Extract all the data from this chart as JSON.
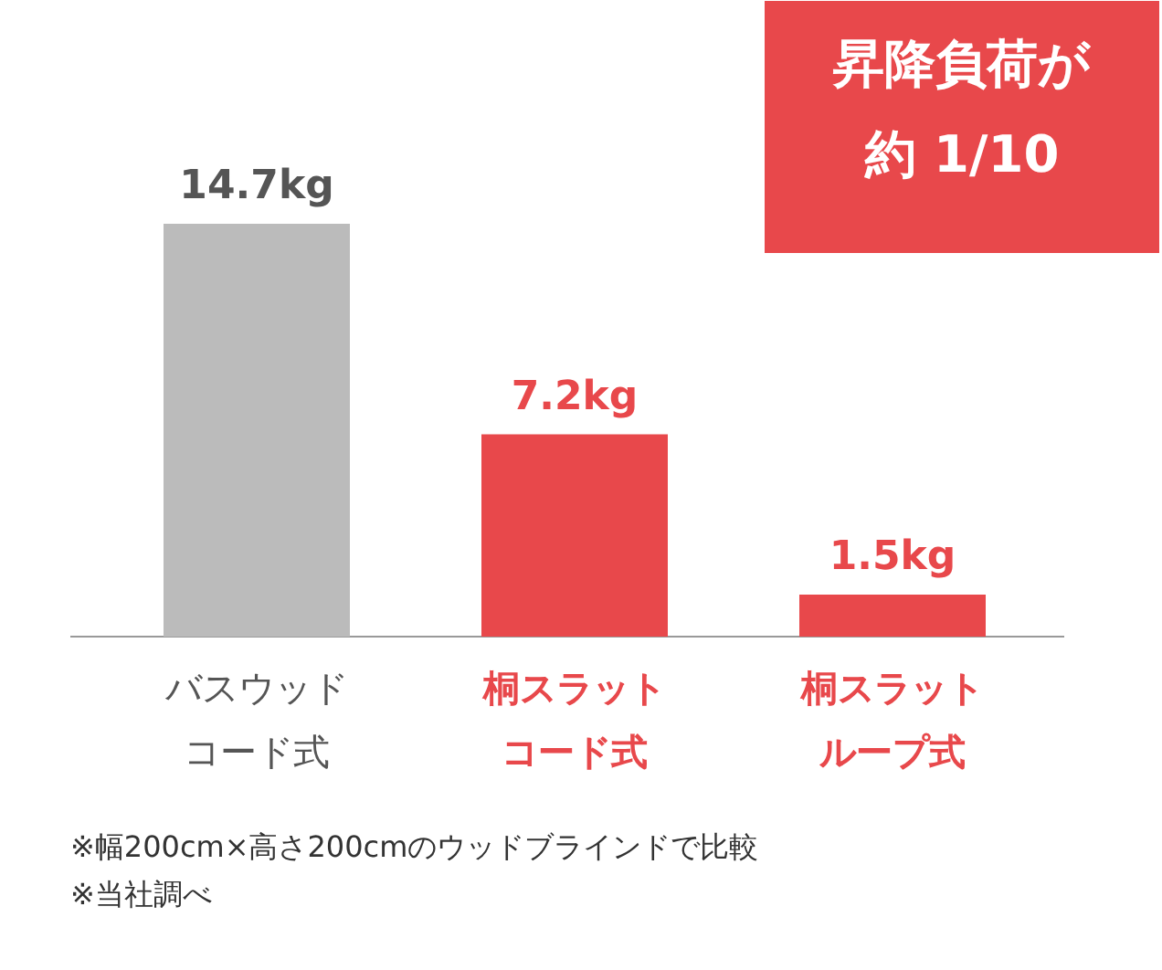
{
  "chart_data": {
    "type": "bar",
    "categories": [
      "バスウッドコード式",
      "桐スラットコード式",
      "桐スラットループ式"
    ],
    "values": [
      14.7,
      7.2,
      1.5
    ],
    "colors": [
      "#bbbbbb",
      "#e8484b",
      "#e8484b"
    ],
    "value_labels": [
      "14.7kg",
      "7.2kg",
      "1.5kg"
    ],
    "annotations": [
      "昇降負荷が約 1/10",
      "※幅200cm×高さ200cmのウッドブラインドで比較",
      "※当社調べ"
    ],
    "grid": false
  }
}
